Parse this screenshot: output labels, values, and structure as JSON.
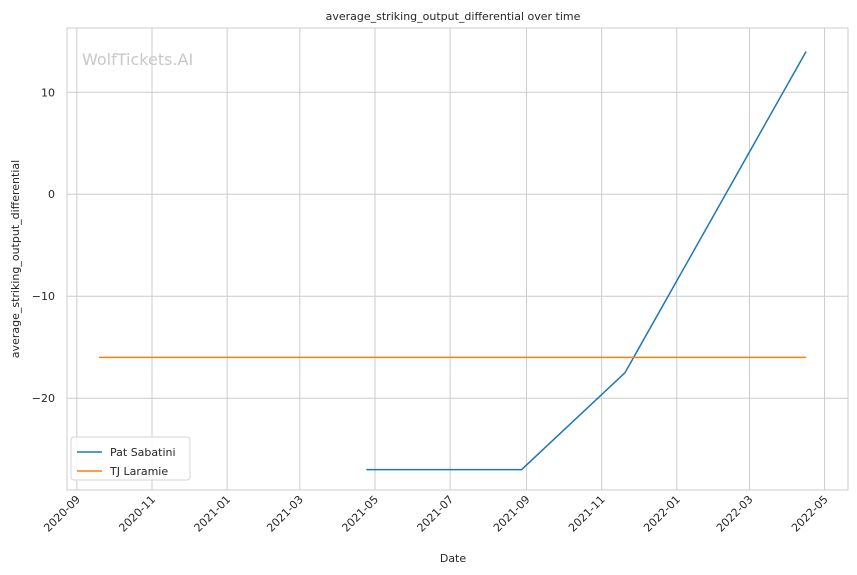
{
  "chart_data": {
    "type": "line",
    "title": "average_striking_output_differential over time",
    "xlabel": "Date",
    "ylabel": "average_striking_output_differential",
    "watermark": "WolfTickets.AI",
    "x_ticks": [
      "2020-09",
      "2020-11",
      "2021-01",
      "2021-03",
      "2021-05",
      "2021-07",
      "2021-09",
      "2021-11",
      "2022-01",
      "2022-03",
      "2022-05"
    ],
    "y_ticks": [
      -20,
      -10,
      0,
      10
    ],
    "xlim": [
      "2020-08-24",
      "2022-05-20"
    ],
    "ylim": [
      -29,
      16.3
    ],
    "grid": true,
    "legend_position": "lower-left",
    "series": [
      {
        "name": "Pat Sabatini",
        "color": "#1f77b4",
        "points": [
          {
            "x": "2021-04-24",
            "y": -27.0
          },
          {
            "x": "2021-08-28",
            "y": -27.0
          },
          {
            "x": "2021-11-20",
            "y": -17.5
          },
          {
            "x": "2022-04-16",
            "y": 14.0
          }
        ]
      },
      {
        "name": "TJ Laramie",
        "color": "#ff7f0e",
        "points": [
          {
            "x": "2020-09-19",
            "y": -16.0
          },
          {
            "x": "2022-04-16",
            "y": -16.0
          }
        ]
      }
    ]
  }
}
